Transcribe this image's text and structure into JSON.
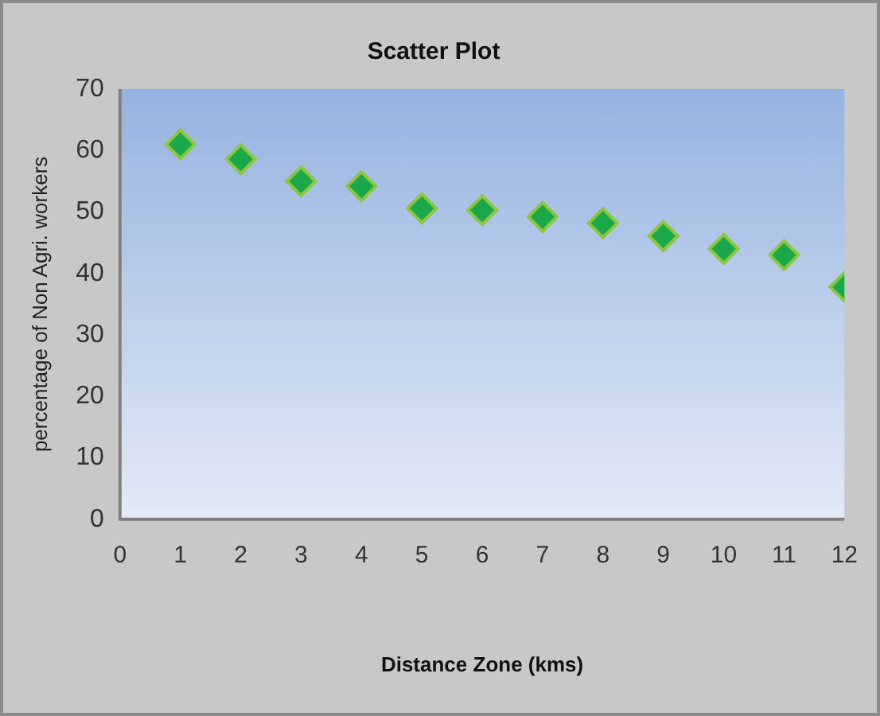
{
  "chart_data": {
    "type": "scatter",
    "title": "Scatter Plot",
    "xlabel": "Distance Zone (kms)",
    "ylabel": "percentage of Non Agri. workers",
    "x": [
      1,
      2,
      3,
      4,
      5,
      6,
      7,
      8,
      9,
      10,
      11,
      12
    ],
    "series": [
      {
        "color": "#1aa84a",
        "values": [
          61,
          58.6,
          55,
          54.2,
          50.6,
          50.3,
          49.2,
          48.2,
          46.1,
          44,
          43,
          37.8
        ]
      }
    ],
    "xlim": [
      0,
      12
    ],
    "xticks": [
      0,
      1,
      2,
      3,
      4,
      5,
      6,
      7,
      8,
      9,
      10,
      11,
      12
    ],
    "ylim": [
      0,
      70
    ],
    "yticks": [
      0,
      10,
      20,
      30,
      40,
      50,
      60,
      70
    ],
    "marker": "diamond",
    "grid": false,
    "legend": false
  }
}
